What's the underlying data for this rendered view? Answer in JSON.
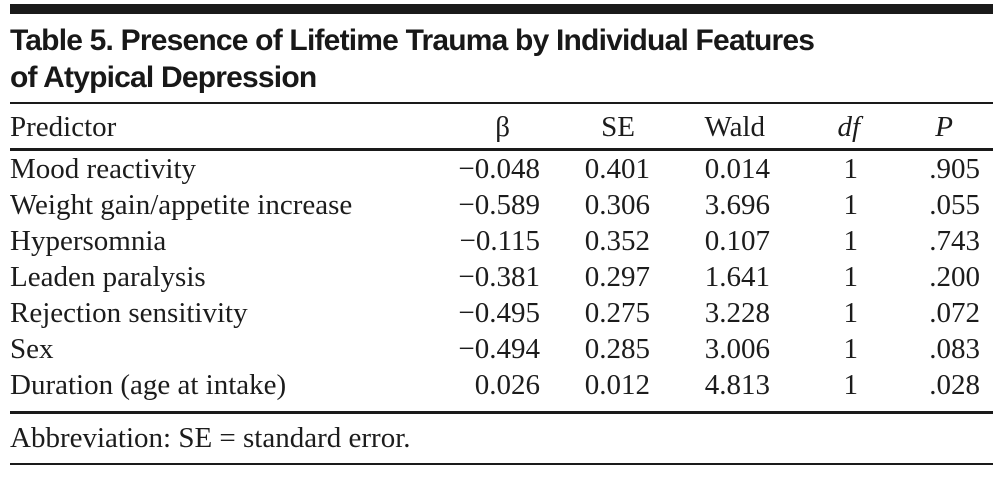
{
  "table": {
    "title_line1": "Table 5. Presence of Lifetime Trauma by Individual Features",
    "title_line2": "of Atypical Depression",
    "columns": {
      "predictor": "Predictor",
      "beta": "β",
      "se": "SE",
      "wald": "Wald",
      "df": "df",
      "p": "P"
    },
    "rows": [
      {
        "predictor": "Mood reactivity",
        "beta": "−0.048",
        "se": "0.401",
        "wald": "0.014",
        "df": "1",
        "p": ".905"
      },
      {
        "predictor": "Weight gain/appetite increase",
        "beta": "−0.589",
        "se": "0.306",
        "wald": "3.696",
        "df": "1",
        "p": ".055"
      },
      {
        "predictor": "Hypersomnia",
        "beta": "−0.115",
        "se": "0.352",
        "wald": "0.107",
        "df": "1",
        "p": ".743"
      },
      {
        "predictor": "Leaden paralysis",
        "beta": "−0.381",
        "se": "0.297",
        "wald": "1.641",
        "df": "1",
        "p": ".200"
      },
      {
        "predictor": "Rejection sensitivity",
        "beta": "−0.495",
        "se": "0.275",
        "wald": "3.228",
        "df": "1",
        "p": ".072"
      },
      {
        "predictor": "Sex",
        "beta": "−0.494",
        "se": "0.285",
        "wald": "3.006",
        "df": "1",
        "p": ".083"
      },
      {
        "predictor": "Duration (age at intake)",
        "beta": "0.026",
        "se": "0.012",
        "wald": "4.813",
        "df": "1",
        "p": ".028"
      }
    ],
    "footnote": "Abbreviation: SE = standard error."
  }
}
